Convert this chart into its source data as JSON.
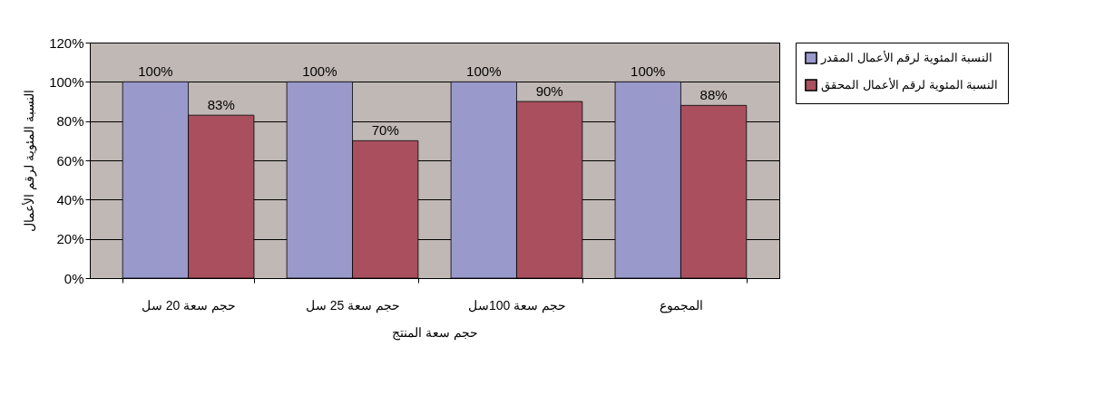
{
  "chart_data": {
    "type": "bar",
    "categories": [
      "حجم  سعة 20 سل",
      "حجم  سعة 25 سل",
      "حجم  سعة 100سل",
      "المجموع"
    ],
    "xlabel": "حجم سعة المنتج",
    "ylabel": "النسبة المئوية لرقم الأعمال",
    "series": [
      {
        "name": "النسبة المئوية لرقم الأعمال المقدر",
        "color": "#9999cc",
        "values": [
          100,
          100,
          100,
          100
        ],
        "value_labels": [
          "100%",
          "100%",
          "100%",
          "100%"
        ]
      },
      {
        "name": "النسبة المئوية لرقم الأعمال المحقق",
        "color": "#a94f5e",
        "values": [
          83,
          70,
          90,
          88
        ],
        "value_labels": [
          "83%",
          "70%",
          "90%",
          "88%"
        ]
      }
    ],
    "ylim": [
      0,
      120
    ],
    "yticks": [
      {
        "value": 0,
        "label": "0%"
      },
      {
        "value": 20,
        "label": "20%"
      },
      {
        "value": 40,
        "label": "40%"
      },
      {
        "value": 60,
        "label": "60%"
      },
      {
        "value": 80,
        "label": "80%"
      },
      {
        "value": 100,
        "label": "100%"
      },
      {
        "value": 120,
        "label": "120%"
      }
    ],
    "grid": "y",
    "legend": "right"
  }
}
